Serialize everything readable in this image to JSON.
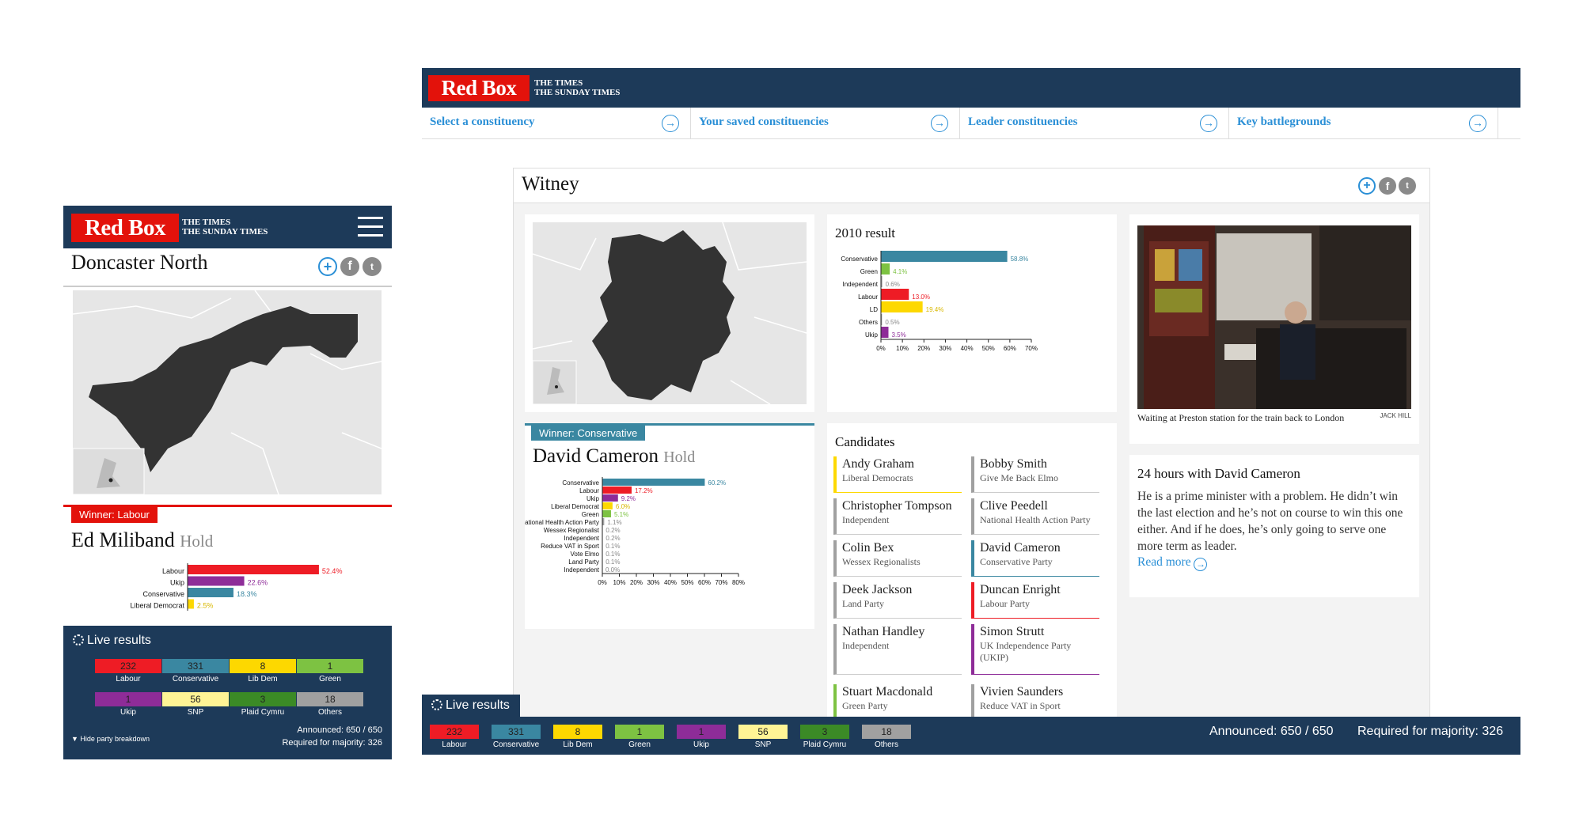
{
  "brand": {
    "red_box": "Red Box",
    "times_line1": "THE  TIMES",
    "times_line2": "THE SUNDAY TIMES"
  },
  "colors": {
    "navy": "#1d3a59",
    "red": "#e3120b",
    "labour": "#ee1c25",
    "conservative": "#3a87a1",
    "ukip": "#8e2c98",
    "libdem": "#fdd800",
    "green": "#7dc242",
    "snp": "#fff495",
    "plaid": "#3b8a26",
    "others": "#a0a0a0",
    "link": "#2a8fd6"
  },
  "nav": {
    "items": [
      {
        "label": "Select a constituency",
        "icon": "arrow-right-circle-icon"
      },
      {
        "label": "Your saved constituencies",
        "icon": "arrow-right-circle-icon"
      },
      {
        "label": "Leader constituencies",
        "icon": "arrow-right-circle-icon"
      },
      {
        "label": "Key battlegrounds",
        "icon": "arrow-right-circle-icon"
      }
    ]
  },
  "mobile": {
    "constituency": "Doncaster North",
    "winner_label": "Winner: Labour",
    "winner_name": "Ed Miliband",
    "winner_status": "Hold",
    "share_icons": [
      "plus-icon",
      "facebook-icon",
      "twitter-icon"
    ],
    "hide_breakdown": "Hide party breakdown"
  },
  "desktop": {
    "constituency": "Witney",
    "winner_label": "Winner: Conservative",
    "winner_name": "David Cameron",
    "winner_status": "Hold",
    "result_2010_title": "2010 result",
    "candidates_title": "Candidates",
    "candidates": [
      {
        "name": "Andy Graham",
        "party": "Liberal Democrats",
        "color": "#fdd800"
      },
      {
        "name": "Bobby Smith",
        "party": "Give Me Back Elmo",
        "color": "#a0a0a0"
      },
      {
        "name": "Christopher Tompson",
        "party": "Independent",
        "color": "#a0a0a0"
      },
      {
        "name": "Clive Peedell",
        "party": "National Health Action Party",
        "color": "#a0a0a0"
      },
      {
        "name": "Colin Bex",
        "party": "Wessex Regionalists",
        "color": "#a0a0a0"
      },
      {
        "name": "David Cameron",
        "party": "Conservative Party",
        "color": "#3a87a1"
      },
      {
        "name": "Deek Jackson",
        "party": "Land Party",
        "color": "#a0a0a0"
      },
      {
        "name": "Duncan Enright",
        "party": "Labour Party",
        "color": "#ee1c25"
      },
      {
        "name": "Nathan Handley",
        "party": "Independent",
        "color": "#a0a0a0"
      },
      {
        "name": "Simon Strutt",
        "party": "UK Independence Party (UKIP)",
        "color": "#8e2c98"
      },
      {
        "name": "Stuart Macdonald",
        "party": "Green Party",
        "color": "#7dc242"
      },
      {
        "name": "Vivien Saunders",
        "party": "Reduce VAT in Sport",
        "color": "#a0a0a0"
      }
    ],
    "photo_caption": "Waiting at Preston station for the train back to London",
    "photo_credit": "JACK HILL",
    "article": {
      "title": "24 hours with David Cameron",
      "body": "He is a prime minister with a problem. He didn’t win the last election and he’s not on course to win this one either. And if he does, he’s only going to serve one more term as leader.",
      "read_more": "Read more"
    }
  },
  "live_results": {
    "title": "Live results",
    "announced": "Announced: 650 / 650",
    "majority": "Required for majority: 326",
    "parties": [
      {
        "name": "Labour",
        "seats": "232",
        "color": "#ee1c25"
      },
      {
        "name": "Conservative",
        "seats": "331",
        "color": "#3a87a1"
      },
      {
        "name": "Lib Dem",
        "seats": "8",
        "color": "#fdd800"
      },
      {
        "name": "Green",
        "seats": "1",
        "color": "#7dc242"
      },
      {
        "name": "Ukip",
        "seats": "1",
        "color": "#8e2c98"
      },
      {
        "name": "SNP",
        "seats": "56",
        "color": "#fff495"
      },
      {
        "name": "Plaid Cymru",
        "seats": "3",
        "color": "#3b8a26"
      },
      {
        "name": "Others",
        "seats": "18",
        "color": "#a0a0a0"
      }
    ]
  },
  "chart_data": [
    {
      "type": "bar",
      "orientation": "horizontal",
      "id": "doncaster-2015",
      "categories": [
        "Labour",
        "Ukip",
        "Conservative",
        "Liberal Democrat"
      ],
      "values": [
        52.4,
        22.6,
        18.3,
        2.5
      ],
      "labels": [
        "52.4%",
        "22.6%",
        "18.3%",
        "2.5%"
      ],
      "colors": [
        "#ee1c25",
        "#8e2c98",
        "#3a87a1",
        "#fdd800"
      ]
    },
    {
      "type": "bar",
      "orientation": "horizontal",
      "id": "witney-2015",
      "categories": [
        "Conservative",
        "Labour",
        "Ukip",
        "Liberal Democrat",
        "Green",
        "National Health Action Party",
        "Wessex Regionalist",
        "Independent",
        "Reduce VAT in Sport",
        "Vote Elmo",
        "Land Party",
        "Independent"
      ],
      "values": [
        60.2,
        17.2,
        9.2,
        6.0,
        5.1,
        1.1,
        0.2,
        0.2,
        0.1,
        0.1,
        0.1,
        0.0
      ],
      "labels": [
        "60.2%",
        "17.2%",
        "9.2%",
        "6.0%",
        "5.1%",
        "1.1%",
        "0.2%",
        "0.2%",
        "0.1%",
        "0.1%",
        "0.1%",
        "0.0%"
      ],
      "colors": [
        "#3a87a1",
        "#ee1c25",
        "#8e2c98",
        "#fdd800",
        "#7dc242",
        "#a0a0a0",
        "#a0a0a0",
        "#a0a0a0",
        "#a0a0a0",
        "#a0a0a0",
        "#a0a0a0",
        "#a0a0a0"
      ],
      "xlim": [
        0,
        80
      ],
      "ticks": [
        "0%",
        "10%",
        "20%",
        "30%",
        "40%",
        "50%",
        "60%",
        "70%",
        "80%"
      ]
    },
    {
      "type": "bar",
      "orientation": "horizontal",
      "id": "witney-2010",
      "title": "2010 result",
      "categories": [
        "Conservative",
        "Green",
        "Independent",
        "Labour",
        "LD",
        "Others",
        "Ukip"
      ],
      "values": [
        58.8,
        4.1,
        0.6,
        13.0,
        19.4,
        0.5,
        3.5
      ],
      "labels": [
        "58.8%",
        "4.1%",
        "0.6%",
        "13.0%",
        "19.4%",
        "0.5%",
        "3.5%"
      ],
      "colors": [
        "#3a87a1",
        "#7dc242",
        "#a0a0a0",
        "#ee1c25",
        "#fdd800",
        "#a0a0a0",
        "#8e2c98"
      ],
      "xlim": [
        0,
        70
      ],
      "ticks": [
        "0%",
        "10%",
        "20%",
        "30%",
        "40%",
        "50%",
        "60%",
        "70%"
      ]
    }
  ]
}
